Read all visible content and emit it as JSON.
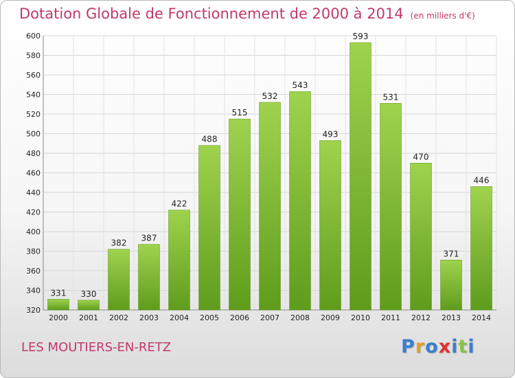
{
  "chart_data": {
    "type": "bar",
    "title": "Dotation Globale de Fonctionnement de 2000 à 2014",
    "unit_note": "(en milliers d'€)",
    "categories": [
      "2000",
      "2001",
      "2002",
      "2003",
      "2004",
      "2005",
      "2006",
      "2007",
      "2008",
      "2009",
      "2010",
      "2011",
      "2012",
      "2013",
      "2014"
    ],
    "values": [
      331,
      330,
      382,
      387,
      422,
      488,
      515,
      532,
      543,
      493,
      593,
      531,
      470,
      371,
      446
    ],
    "ylim": [
      320,
      600
    ],
    "yticks": [
      320,
      340,
      360,
      380,
      400,
      420,
      440,
      460,
      480,
      500,
      520,
      540,
      560,
      580,
      600
    ],
    "grid": true,
    "bar_color": "#7dbb2e"
  },
  "footer": {
    "commune": "LES MOUTIERS-EN-RETZ",
    "logo_letters": [
      "P",
      "r",
      "o",
      "x",
      "i",
      "t",
      "i"
    ],
    "logo_colors": [
      "#3a7fd0",
      "#e8a020",
      "#3a7fd0",
      "#e03030",
      "#3a7fd0",
      "#8bc34a",
      "#3a7fd0"
    ]
  }
}
